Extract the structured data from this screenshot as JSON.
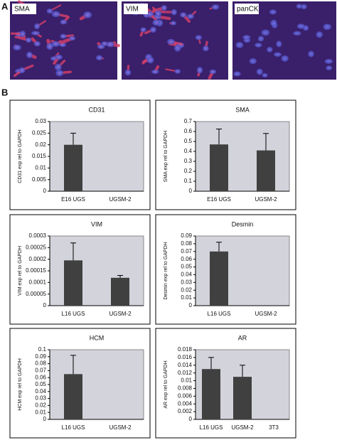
{
  "panel_a": {
    "label": "A",
    "images": [
      "SMA",
      "VIM",
      "panCK"
    ]
  },
  "panel_b": {
    "label": "B"
  },
  "chart_data": [
    {
      "type": "bar",
      "title": "CD31",
      "y_label": "CD31 exp rel to GAPDH",
      "categories": [
        "E16 UGS",
        "UGSM-2"
      ],
      "series": [
        {
          "color": "#404040",
          "values": [
            0.02,
            0
          ],
          "errors": [
            0.005,
            null
          ]
        }
      ],
      "ylim": [
        0,
        0.03
      ],
      "yticks": [
        0,
        0.005,
        0.01,
        0.015,
        0.02,
        0.025,
        0.03
      ]
    },
    {
      "type": "bar",
      "title": "SMA",
      "y_label": "SMA exp rel to GAPDH",
      "categories": [
        "E16 UGS",
        "UGSM-2"
      ],
      "series": [
        {
          "color": "#404040",
          "values": [
            0.47,
            0.41
          ],
          "errors": [
            0.155,
            0.17
          ]
        }
      ],
      "ylim": [
        0,
        0.7
      ],
      "yticks": [
        0,
        0.1,
        0.2,
        0.3,
        0.4,
        0.5,
        0.6,
        0.7
      ]
    },
    {
      "type": "bar",
      "title": "VIM",
      "y_label": "VIM exp rel to GAPDH",
      "categories": [
        "L16 UGS",
        "UGSM-2"
      ],
      "series": [
        {
          "color": "#404040",
          "values": [
            0.000195,
            0.00012
          ],
          "errors": [
            7.5e-05,
            1e-05
          ]
        }
      ],
      "ylim": [
        0,
        0.0003
      ],
      "yticks": [
        0,
        5e-05,
        0.0001,
        0.00015,
        0.0002,
        0.00025,
        0.0003
      ]
    },
    {
      "type": "bar",
      "title": "Desmin",
      "y_label": "Desmin exp rel to GAPDH",
      "categories": [
        "L16 UGS",
        "UGSM-2"
      ],
      "series": [
        {
          "color": "#404040",
          "values": [
            0.07,
            0
          ],
          "errors": [
            0.012,
            null
          ]
        }
      ],
      "ylim": [
        0,
        0.09
      ],
      "yticks": [
        0,
        0.01,
        0.02,
        0.03,
        0.04,
        0.05,
        0.06,
        0.07,
        0.08,
        0.09
      ]
    },
    {
      "type": "bar",
      "title": "HCM",
      "y_label": "HCM exp rel to GAPDH",
      "categories": [
        "L16 UGS",
        "UGSM-2"
      ],
      "series": [
        {
          "color": "#404040",
          "values": [
            0.065,
            0
          ],
          "errors": [
            0.027,
            null
          ]
        }
      ],
      "ylim": [
        0,
        0.1
      ],
      "yticks": [
        0,
        0.01,
        0.02,
        0.03,
        0.04,
        0.05,
        0.06,
        0.07,
        0.08,
        0.09,
        0.1
      ]
    },
    {
      "type": "bar",
      "title": "AR",
      "y_label": "AR exp rel to GAPDH",
      "categories": [
        "L16 UGS",
        "UGSM-2",
        "3T3"
      ],
      "series": [
        {
          "color": "#404040",
          "values": [
            0.013,
            0.011,
            0
          ],
          "errors": [
            0.003,
            0.003,
            null
          ]
        }
      ],
      "ylim": [
        0,
        0.018
      ],
      "yticks": [
        0,
        0.002,
        0.004,
        0.006,
        0.008,
        0.01,
        0.012,
        0.014,
        0.016,
        0.018
      ]
    }
  ]
}
